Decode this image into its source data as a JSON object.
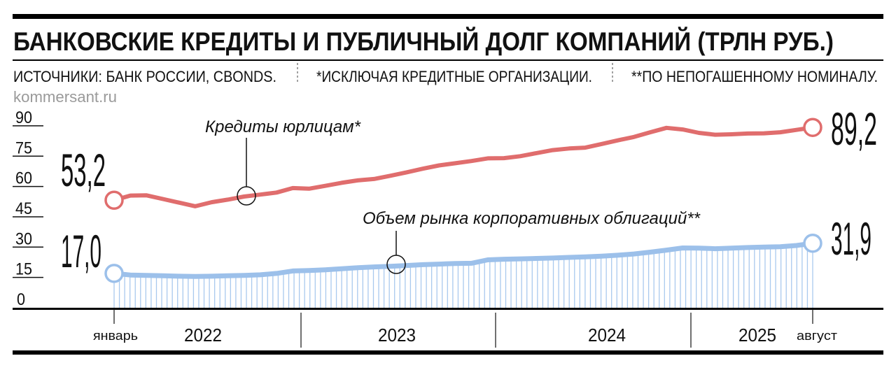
{
  "header": {
    "title": "БАНКОВСКИЕ КРЕДИТЫ И ПУБЛИЧНЫЙ ДОЛГ КОМПАНИЙ (ТРЛН РУБ.)",
    "sources": "ИСТОЧНИКИ: БАНК РОССИИ, CBONDS.",
    "note1": "*ИСКЛЮЧАЯ КРЕДИТНЫЕ ОРГАНИЗАЦИИ.",
    "note2": "**ПО НЕПОГАШЕННОМУ НОМИНАЛУ.",
    "site": "kommersant.ru"
  },
  "chart_data": {
    "type": "line",
    "title": "БАНКОВСКИЕ КРЕДИТЫ И ПУБЛИЧНЫЙ ДОЛГ КОМПАНИЙ (ТРЛН РУБ.)",
    "xlabel": "",
    "ylabel": "трлн руб.",
    "ylim": [
      0,
      90
    ],
    "yticks": [
      "0",
      "15",
      "30",
      "45",
      "60",
      "75",
      "90"
    ],
    "ytick_values": [
      0,
      15,
      30,
      45,
      60,
      75,
      90
    ],
    "x_start_label": "январь",
    "x_end_label": "август",
    "year_labels": [
      "2022",
      "2023",
      "2024",
      "2025"
    ],
    "x_range": "январь 2022 – август 2025 (monthly)",
    "series": [
      {
        "name": "Кредиты юрлицам*",
        "color": "#e06d6d",
        "start_label": "53,2",
        "end_label": "89,2",
        "values": [
          53.2,
          55.5,
          55.6,
          53.8,
          52.0,
          50.2,
          52.2,
          53.5,
          55.0,
          56.0,
          57.0,
          59.2,
          58.9,
          60.3,
          61.8,
          63.0,
          63.7,
          65.3,
          67.0,
          68.8,
          70.4,
          71.5,
          72.6,
          73.9,
          74.0,
          75.0,
          76.5,
          78.0,
          78.8,
          79.2,
          81.0,
          82.8,
          84.5,
          86.8,
          89.0,
          88.2,
          86.5,
          85.6,
          85.8,
          86.2,
          86.3,
          86.8,
          88.0,
          89.2
        ]
      },
      {
        "name": "Объем рынка корпоративных облигаций**",
        "color": "#9cc0ea",
        "start_label": "17,0",
        "end_label": "31,9",
        "values": [
          17.0,
          16.2,
          16.0,
          15.8,
          15.6,
          15.5,
          15.6,
          15.8,
          16.0,
          16.3,
          17.0,
          18.2,
          18.4,
          18.8,
          19.3,
          19.8,
          20.2,
          20.5,
          20.9,
          21.3,
          21.6,
          21.9,
          22.0,
          23.7,
          24.0,
          24.2,
          24.4,
          24.6,
          24.9,
          25.2,
          25.5,
          26.0,
          26.6,
          27.5,
          28.5,
          29.6,
          29.5,
          29.2,
          29.5,
          29.8,
          30.0,
          30.2,
          30.8,
          31.9
        ]
      }
    ],
    "grid": false
  }
}
